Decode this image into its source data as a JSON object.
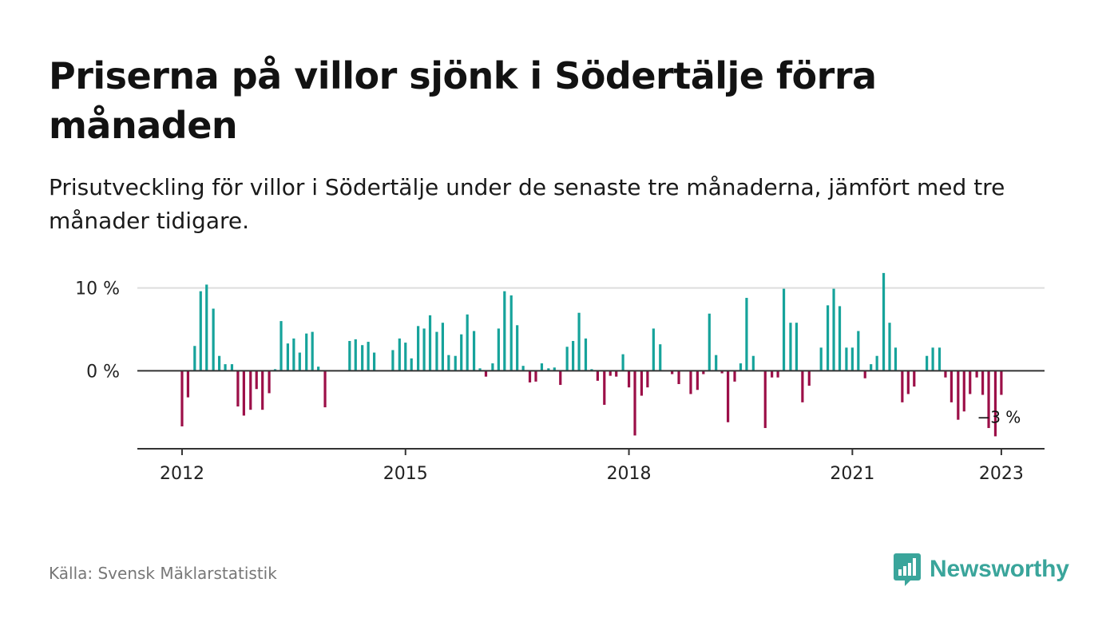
{
  "header": {
    "title": "Priserna på villor sjönk i Södertälje förra månaden",
    "subtitle": "Prisutveckling för villor i Södertälje under de senaste tre månaderna, jämfört med tre månader tidigare."
  },
  "footer": {
    "source": "Källa: Svensk Mäklarstatistik",
    "brand": "Newsworthy"
  },
  "colors": {
    "positive": "#16a39b",
    "negative": "#9c0f48",
    "grid": "#dddddd",
    "axis": "#333333",
    "brand": "#3aa59b"
  },
  "chart_data": {
    "type": "bar",
    "title": "",
    "xlabel": "",
    "ylabel": "",
    "ylim": [
      -9.4,
      11.5
    ],
    "y_ticks": [
      {
        "value": 0,
        "label": "0 %"
      },
      {
        "value": 10,
        "label": "10 %"
      }
    ],
    "x_ticks": [
      {
        "value": 2012,
        "label": "2012"
      },
      {
        "value": 2015,
        "label": "2015"
      },
      {
        "value": 2018,
        "label": "2018"
      },
      {
        "value": 2021,
        "label": "2021"
      },
      {
        "value": 2023,
        "label": "2023"
      }
    ],
    "x_range": [
      2011.4,
      2023.58
    ],
    "grid": "horizontal",
    "annotation": {
      "text": "−3 %"
    },
    "series": [
      {
        "points": [
          {
            "x": 2012.0,
            "y": -6.7
          },
          {
            "x": 2012.08,
            "y": -3.2
          },
          {
            "x": 2012.17,
            "y": 3.0
          },
          {
            "x": 2012.25,
            "y": 9.6
          },
          {
            "x": 2012.33,
            "y": 10.4
          },
          {
            "x": 2012.42,
            "y": 7.5
          },
          {
            "x": 2012.5,
            "y": 1.8
          },
          {
            "x": 2012.58,
            "y": 0.8
          },
          {
            "x": 2012.67,
            "y": 0.8
          },
          {
            "x": 2012.75,
            "y": -4.3
          },
          {
            "x": 2012.83,
            "y": -5.4
          },
          {
            "x": 2012.92,
            "y": -4.7
          },
          {
            "x": 2013.0,
            "y": -2.2
          },
          {
            "x": 2013.08,
            "y": -4.7
          },
          {
            "x": 2013.17,
            "y": -2.7
          },
          {
            "x": 2013.25,
            "y": 0.2
          },
          {
            "x": 2013.33,
            "y": 6.0
          },
          {
            "x": 2013.42,
            "y": 3.3
          },
          {
            "x": 2013.5,
            "y": 3.9
          },
          {
            "x": 2013.58,
            "y": 2.2
          },
          {
            "x": 2013.67,
            "y": 4.5
          },
          {
            "x": 2013.75,
            "y": 4.7
          },
          {
            "x": 2013.83,
            "y": 0.5
          },
          {
            "x": 2013.92,
            "y": -4.4
          },
          {
            "x": 2014.25,
            "y": 3.6
          },
          {
            "x": 2014.33,
            "y": 3.8
          },
          {
            "x": 2014.42,
            "y": 3.1
          },
          {
            "x": 2014.5,
            "y": 3.5
          },
          {
            "x": 2014.58,
            "y": 2.2
          },
          {
            "x": 2014.83,
            "y": 2.5
          },
          {
            "x": 2014.92,
            "y": 3.9
          },
          {
            "x": 2015.0,
            "y": 3.4
          },
          {
            "x": 2015.08,
            "y": 1.5
          },
          {
            "x": 2015.17,
            "y": 5.4
          },
          {
            "x": 2015.25,
            "y": 5.1
          },
          {
            "x": 2015.33,
            "y": 6.7
          },
          {
            "x": 2015.42,
            "y": 4.7
          },
          {
            "x": 2015.5,
            "y": 5.8
          },
          {
            "x": 2015.58,
            "y": 1.9
          },
          {
            "x": 2015.67,
            "y": 1.8
          },
          {
            "x": 2015.75,
            "y": 4.4
          },
          {
            "x": 2015.83,
            "y": 6.8
          },
          {
            "x": 2015.92,
            "y": 4.8
          },
          {
            "x": 2016.0,
            "y": 0.3
          },
          {
            "x": 2016.08,
            "y": -0.7
          },
          {
            "x": 2016.17,
            "y": 0.9
          },
          {
            "x": 2016.25,
            "y": 5.1
          },
          {
            "x": 2016.33,
            "y": 9.6
          },
          {
            "x": 2016.42,
            "y": 9.1
          },
          {
            "x": 2016.5,
            "y": 5.5
          },
          {
            "x": 2016.58,
            "y": 0.6
          },
          {
            "x": 2016.67,
            "y": -1.4
          },
          {
            "x": 2016.75,
            "y": -1.3
          },
          {
            "x": 2016.83,
            "y": 0.9
          },
          {
            "x": 2016.92,
            "y": 0.3
          },
          {
            "x": 2017.0,
            "y": 0.4
          },
          {
            "x": 2017.08,
            "y": -1.7
          },
          {
            "x": 2017.17,
            "y": 2.9
          },
          {
            "x": 2017.25,
            "y": 3.6
          },
          {
            "x": 2017.33,
            "y": 7.0
          },
          {
            "x": 2017.42,
            "y": 3.9
          },
          {
            "x": 2017.5,
            "y": 0.2
          },
          {
            "x": 2017.58,
            "y": -1.2
          },
          {
            "x": 2017.67,
            "y": -4.1
          },
          {
            "x": 2017.75,
            "y": -0.6
          },
          {
            "x": 2017.83,
            "y": -0.7
          },
          {
            "x": 2017.92,
            "y": 2.0
          },
          {
            "x": 2018.0,
            "y": -2.0
          },
          {
            "x": 2018.08,
            "y": -7.8
          },
          {
            "x": 2018.17,
            "y": -3.0
          },
          {
            "x": 2018.25,
            "y": -2.0
          },
          {
            "x": 2018.33,
            "y": 5.1
          },
          {
            "x": 2018.42,
            "y": 3.2
          },
          {
            "x": 2018.58,
            "y": -0.4
          },
          {
            "x": 2018.67,
            "y": -1.6
          },
          {
            "x": 2018.83,
            "y": -2.8
          },
          {
            "x": 2018.92,
            "y": -2.3
          },
          {
            "x": 2019.0,
            "y": -0.4
          },
          {
            "x": 2019.08,
            "y": 6.9
          },
          {
            "x": 2019.17,
            "y": 1.9
          },
          {
            "x": 2019.25,
            "y": -0.3
          },
          {
            "x": 2019.33,
            "y": -6.2
          },
          {
            "x": 2019.42,
            "y": -1.3
          },
          {
            "x": 2019.5,
            "y": 0.9
          },
          {
            "x": 2019.58,
            "y": 8.8
          },
          {
            "x": 2019.67,
            "y": 1.8
          },
          {
            "x": 2019.83,
            "y": -6.9
          },
          {
            "x": 2019.92,
            "y": -0.8
          },
          {
            "x": 2020.0,
            "y": -0.8
          },
          {
            "x": 2020.08,
            "y": 9.9
          },
          {
            "x": 2020.17,
            "y": 5.8
          },
          {
            "x": 2020.25,
            "y": 5.8
          },
          {
            "x": 2020.33,
            "y": -3.8
          },
          {
            "x": 2020.42,
            "y": -1.8
          },
          {
            "x": 2020.58,
            "y": 2.8
          },
          {
            "x": 2020.67,
            "y": 7.9
          },
          {
            "x": 2020.75,
            "y": 9.9
          },
          {
            "x": 2020.83,
            "y": 7.8
          },
          {
            "x": 2020.92,
            "y": 2.8
          },
          {
            "x": 2021.0,
            "y": 2.8
          },
          {
            "x": 2021.08,
            "y": 4.8
          },
          {
            "x": 2021.17,
            "y": -0.9
          },
          {
            "x": 2021.25,
            "y": 0.8
          },
          {
            "x": 2021.33,
            "y": 1.8
          },
          {
            "x": 2021.42,
            "y": 11.8
          },
          {
            "x": 2021.5,
            "y": 5.8
          },
          {
            "x": 2021.58,
            "y": 2.8
          },
          {
            "x": 2021.67,
            "y": -3.8
          },
          {
            "x": 2021.75,
            "y": -2.8
          },
          {
            "x": 2021.83,
            "y": -1.9
          },
          {
            "x": 2022.0,
            "y": 1.8
          },
          {
            "x": 2022.08,
            "y": 2.8
          },
          {
            "x": 2022.17,
            "y": 2.8
          },
          {
            "x": 2022.25,
            "y": -0.8
          },
          {
            "x": 2022.33,
            "y": -3.8
          },
          {
            "x": 2022.42,
            "y": -5.9
          },
          {
            "x": 2022.5,
            "y": -4.9
          },
          {
            "x": 2022.58,
            "y": -2.8
          },
          {
            "x": 2022.67,
            "y": -0.8
          },
          {
            "x": 2022.75,
            "y": -2.9
          },
          {
            "x": 2022.83,
            "y": -6.9
          },
          {
            "x": 2022.92,
            "y": -7.9
          },
          {
            "x": 2023.0,
            "y": -2.9
          }
        ]
      }
    ]
  }
}
